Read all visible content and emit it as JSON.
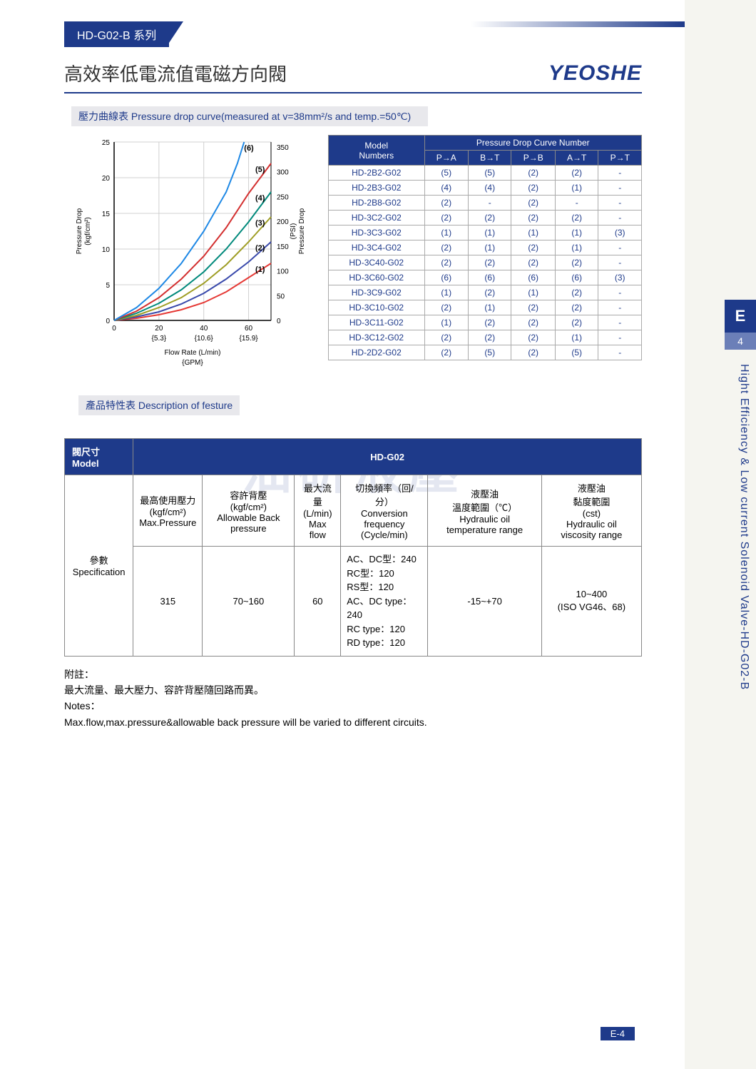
{
  "header": {
    "tab": "HD-G02-B 系列",
    "title": "高效率低電流值電磁方向閥",
    "brand": "YEOSHE"
  },
  "section1": {
    "label": "壓力曲線表  Pressure drop curve(measured at v=38mm²/s and temp.=50℃)"
  },
  "chart": {
    "type": "line",
    "title": "",
    "x_label": "Flow Rate (L/min)\n{GPM}",
    "y_left_label": "Pressure Drop\n(kgf/cm²)",
    "y_right_label": "Pressure Drop\n(PSI)",
    "x_ticks": [
      0,
      20,
      40,
      60
    ],
    "x_gpm": [
      "{5.3}",
      "{10.6}",
      "{15.9}"
    ],
    "y_left_ticks": [
      0,
      5,
      10,
      15,
      20,
      25
    ],
    "y_right_ticks": [
      0,
      50,
      100,
      150,
      200,
      250,
      300,
      350
    ],
    "xlim": [
      0,
      70
    ],
    "ylim_left": [
      0,
      25
    ],
    "grid_color": "#d0d0d0",
    "axis_color": "#000000",
    "background": "#ffffff",
    "label_fontsize": 10,
    "tick_fontsize": 10,
    "series": [
      {
        "name": "(1)",
        "color": "#e53935",
        "width": 2,
        "points": [
          [
            0,
            0
          ],
          [
            10,
            0.3
          ],
          [
            20,
            0.8
          ],
          [
            30,
            1.5
          ],
          [
            40,
            2.5
          ],
          [
            50,
            4
          ],
          [
            60,
            6
          ],
          [
            70,
            8
          ]
        ]
      },
      {
        "name": "(2)",
        "color": "#3949ab",
        "width": 2,
        "points": [
          [
            0,
            0
          ],
          [
            10,
            0.5
          ],
          [
            20,
            1.2
          ],
          [
            30,
            2.3
          ],
          [
            40,
            3.8
          ],
          [
            50,
            5.8
          ],
          [
            60,
            8.2
          ],
          [
            70,
            11
          ]
        ]
      },
      {
        "name": "(3)",
        "color": "#9e9d24",
        "width": 2,
        "points": [
          [
            0,
            0
          ],
          [
            10,
            0.7
          ],
          [
            20,
            1.8
          ],
          [
            30,
            3.2
          ],
          [
            40,
            5.2
          ],
          [
            50,
            7.8
          ],
          [
            60,
            11
          ],
          [
            70,
            14.5
          ]
        ]
      },
      {
        "name": "(4)",
        "color": "#00897b",
        "width": 2,
        "points": [
          [
            0,
            0
          ],
          [
            10,
            1
          ],
          [
            20,
            2.4
          ],
          [
            30,
            4.3
          ],
          [
            40,
            6.8
          ],
          [
            50,
            10
          ],
          [
            60,
            13.8
          ],
          [
            70,
            18
          ]
        ]
      },
      {
        "name": "(5)",
        "color": "#d32f2f",
        "width": 2,
        "points": [
          [
            0,
            0
          ],
          [
            10,
            1.3
          ],
          [
            20,
            3.2
          ],
          [
            30,
            5.8
          ],
          [
            40,
            9
          ],
          [
            50,
            13
          ],
          [
            60,
            17.8
          ],
          [
            70,
            22
          ]
        ]
      },
      {
        "name": "(6)",
        "color": "#1e88e5",
        "width": 2,
        "points": [
          [
            0,
            0
          ],
          [
            10,
            1.8
          ],
          [
            20,
            4.5
          ],
          [
            30,
            8
          ],
          [
            40,
            12.5
          ],
          [
            50,
            18
          ],
          [
            55,
            22
          ],
          [
            58,
            25
          ]
        ]
      }
    ]
  },
  "pd_table": {
    "header_model": "Model\nNumbers",
    "header_group": "Pressure Drop Curve Number",
    "cols": [
      "P→A",
      "B→T",
      "P→B",
      "A→T",
      "P→T"
    ],
    "rows": [
      {
        "m": "HD-2B2-G02",
        "v": [
          "(5)",
          "(5)",
          "(2)",
          "(2)",
          "-"
        ]
      },
      {
        "m": "HD-2B3-G02",
        "v": [
          "(4)",
          "(4)",
          "(2)",
          "(1)",
          "-"
        ]
      },
      {
        "m": "HD-2B8-G02",
        "v": [
          "(2)",
          "-",
          "(2)",
          "-",
          "-"
        ]
      },
      {
        "m": "HD-3C2-G02",
        "v": [
          "(2)",
          "(2)",
          "(2)",
          "(2)",
          "-"
        ]
      },
      {
        "m": "HD-3C3-G02",
        "v": [
          "(1)",
          "(1)",
          "(1)",
          "(1)",
          "(3)"
        ]
      },
      {
        "m": "HD-3C4-G02",
        "v": [
          "(2)",
          "(1)",
          "(2)",
          "(1)",
          "-"
        ]
      },
      {
        "m": "HD-3C40-G02",
        "v": [
          "(2)",
          "(2)",
          "(2)",
          "(2)",
          "-"
        ]
      },
      {
        "m": "HD-3C60-G02",
        "v": [
          "(6)",
          "(6)",
          "(6)",
          "(6)",
          "(3)"
        ]
      },
      {
        "m": "HD-3C9-G02",
        "v": [
          "(1)",
          "(2)",
          "(1)",
          "(2)",
          "-"
        ]
      },
      {
        "m": "HD-3C10-G02",
        "v": [
          "(2)",
          "(1)",
          "(2)",
          "(2)",
          "-"
        ]
      },
      {
        "m": "HD-3C11-G02",
        "v": [
          "(1)",
          "(2)",
          "(2)",
          "(2)",
          "-"
        ]
      },
      {
        "m": "HD-3C12-G02",
        "v": [
          "(2)",
          "(2)",
          "(2)",
          "(1)",
          "-"
        ]
      },
      {
        "m": "HD-2D2-G02",
        "v": [
          "(2)",
          "(5)",
          "(2)",
          "(5)",
          "-"
        ]
      }
    ]
  },
  "section2": {
    "label": "產品特性表 Description of festure"
  },
  "spec": {
    "model_label": "閥尺寸 Model",
    "model_value": "HD-G02",
    "param_label": "參數\nSpecification",
    "cols": [
      "最高使用壓力\n(kgf/cm²)\nMax.Pressure",
      "容許背壓\n(kgf/cm²)\nAllowable Back pressure",
      "最大流量\n(L/min)\nMax flow",
      "切換頻率（回/分）\nConversion frequency\n(Cycle/min)",
      "液壓油\n溫度範圍（℃）\nHydraulic oil temperature range",
      "液壓油\n黏度範圍\n(cst)\nHydraulic oil viscosity range"
    ],
    "row": {
      "max_pressure": "315",
      "back_pressure": "70~160",
      "max_flow": "60",
      "conversion": "AC、DC型：240\nRC型：120\nRS型：120\nAC、DC type：240\nRC type：120\nRD type：120",
      "temp_range": "-15~+70",
      "viscosity": "10~400\n(ISO VG46、68)"
    }
  },
  "notes": {
    "l1": "附註：",
    "l2": "最大流量、最大壓力、容許背壓隨回路而異。",
    "l3": "Notes：",
    "l4": "Max.flow,max.pressure&allowable back pressure will be varied to different circuits."
  },
  "side": {
    "letter": "E",
    "num": "4",
    "text": "Hight Efficiency & Low current Solenoid Valve-HD-G02-B"
  },
  "footer": {
    "page": "E-4"
  },
  "watermark": "油研液壓"
}
